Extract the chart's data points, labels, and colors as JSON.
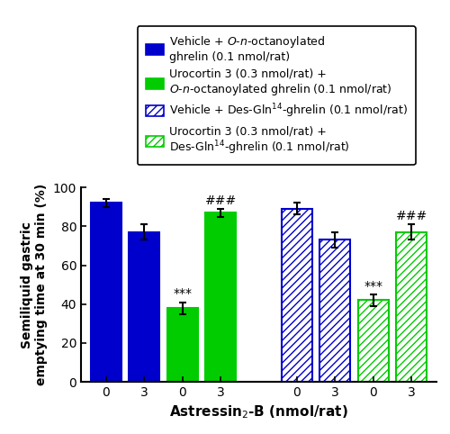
{
  "bar_values": [
    92,
    77,
    38,
    87,
    89,
    73,
    42,
    77
  ],
  "bar_errors": [
    2,
    4,
    3,
    2,
    3,
    4,
    3,
    4
  ],
  "bar_hatches": [
    null,
    null,
    null,
    null,
    "////",
    "////",
    "////",
    "////"
  ],
  "bar_edgecolors": [
    "#0000cc",
    "#0000cc",
    "#00cc00",
    "#00cc00",
    "#0000cc",
    "#0000cc",
    "#00cc00",
    "#00cc00"
  ],
  "bar_facecolors": [
    "#0000cc",
    "#0000cc",
    "#00cc00",
    "#00cc00",
    "none",
    "none",
    "none",
    "none"
  ],
  "x_tick_labels": [
    "0",
    "3",
    "0",
    "3",
    "0",
    "3",
    "0",
    "3"
  ],
  "x_label": "Astressin$_2$-B (nmol/rat)",
  "y_label": "Semiliquid gastric\nemptying time at 30 min (%)",
  "ylim": [
    0,
    100
  ],
  "yticks": [
    0,
    20,
    40,
    60,
    80,
    100
  ],
  "significance_labels": [
    {
      "bar_idx": 2,
      "label": "***",
      "y": 42,
      "fontsize": 10
    },
    {
      "bar_idx": 3,
      "label": "###",
      "y": 90,
      "fontsize": 10
    },
    {
      "bar_idx": 6,
      "label": "***",
      "y": 46,
      "fontsize": 10
    },
    {
      "bar_idx": 7,
      "label": "###",
      "y": 82,
      "fontsize": 10
    }
  ],
  "legend_entries": [
    {
      "label": "Vehicle + $O$-$n$-octanoylated\nghrelin (0.1 nmol/rat)",
      "facecolor": "#0000cc",
      "hatch": null,
      "edgecolor": "#0000cc"
    },
    {
      "label": "Urocortin 3 (0.3 nmol/rat) +\n$O$-$n$-octanoylated ghrelin (0.1 nmol/rat)",
      "facecolor": "#00cc00",
      "hatch": null,
      "edgecolor": "#00cc00"
    },
    {
      "label": "Vehicle + Des-Gln$^{14}$-ghrelin (0.1 nmol/rat)",
      "facecolor": "none",
      "hatch": "////",
      "edgecolor": "#0000cc"
    },
    {
      "label": "Urocortin 3 (0.3 nmol/rat) +\nDes-Gln$^{14}$-ghrelin (0.1 nmol/rat)",
      "facecolor": "none",
      "hatch": "////",
      "edgecolor": "#00cc00"
    }
  ],
  "group_positions": [
    0,
    1,
    2,
    3,
    5,
    6,
    7,
    8
  ],
  "bar_width": 0.8
}
